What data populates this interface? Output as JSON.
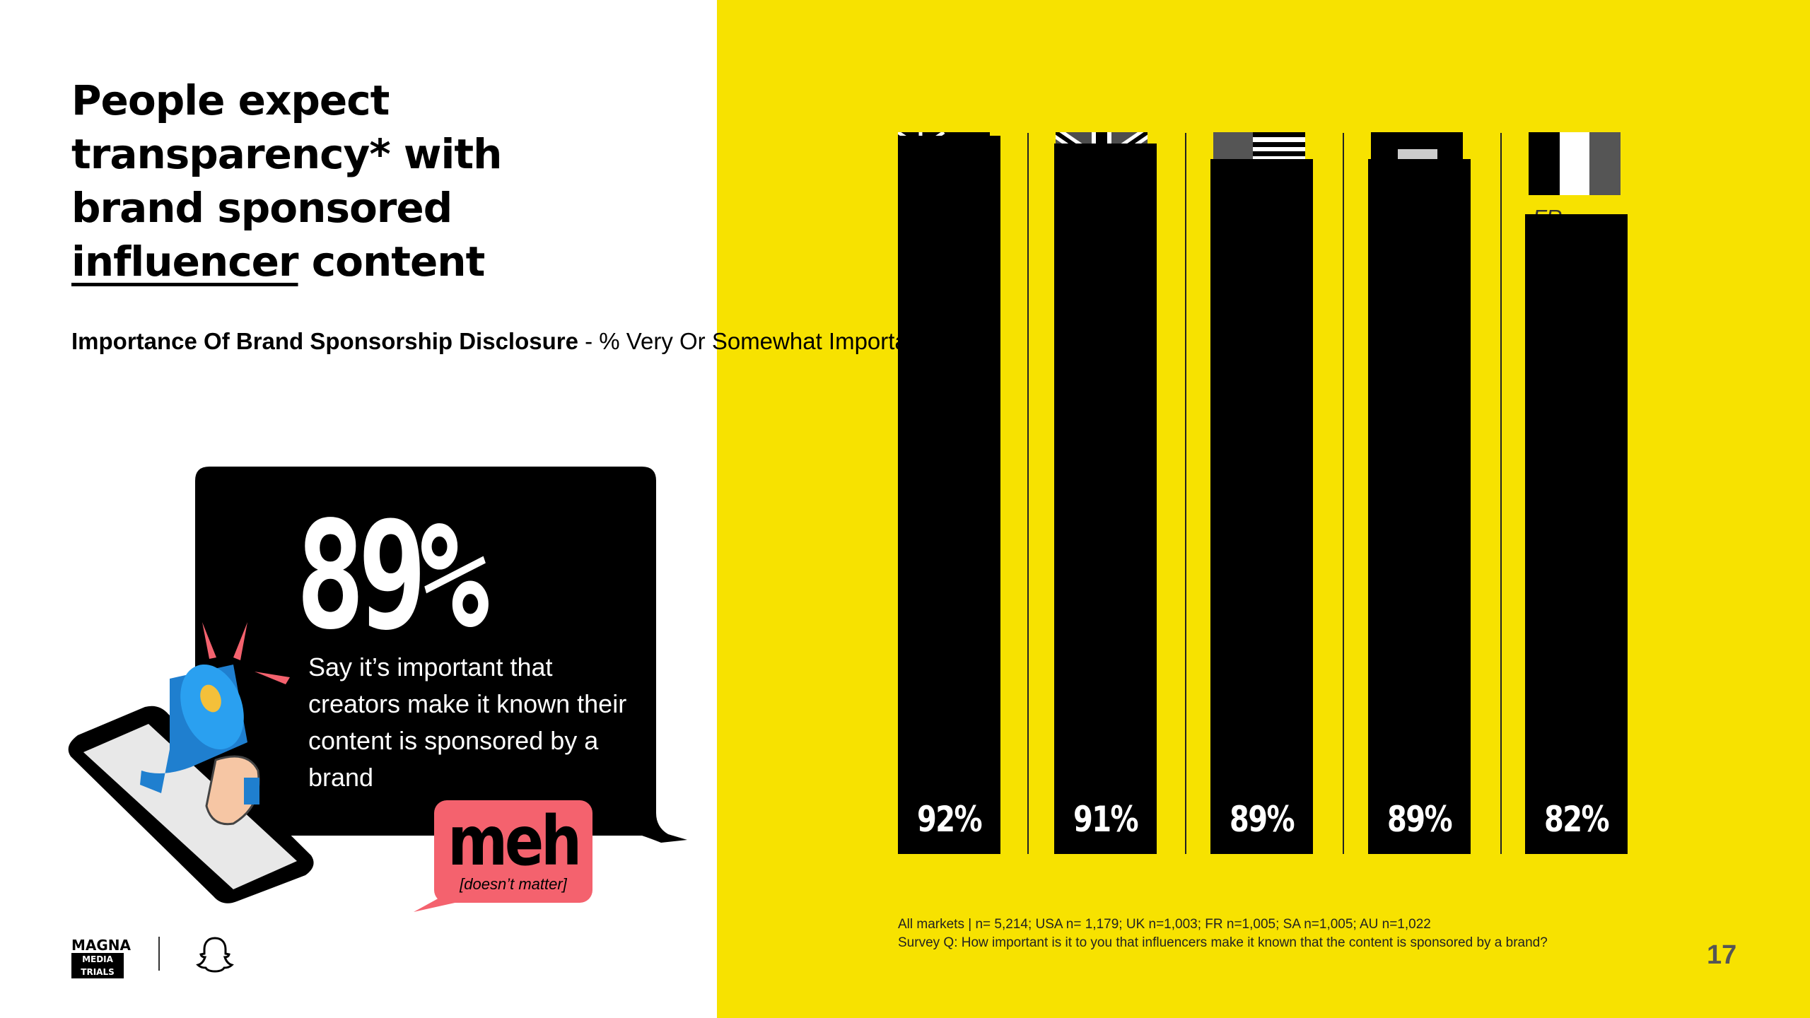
{
  "headline": {
    "line1": "People expect",
    "line2": "transparency* with",
    "line3": "brand sponsored",
    "underlined_word": "influencer",
    "line4_rest": " content"
  },
  "subtitle": {
    "bold": "Importance Of Brand Sponsorship Disclosure",
    "rest": " - % Very Or Somewhat Important"
  },
  "stat": {
    "value": "89%",
    "description": "Say it’s important that creators make it known their content is sponsored by a brand",
    "meh": "meh",
    "meh_note": "[doesn’t matter]"
  },
  "logos": {
    "magna_top": "MAGNA",
    "magna_bottom": "MEDIA TRIALS",
    "snapchat_icon": "ghost-icon"
  },
  "colors": {
    "panel": "#f7e200",
    "bar": "#000000",
    "accent": "#f4626e"
  },
  "chart_data": {
    "type": "bar",
    "title": "",
    "categories": [
      "AU",
      "UK",
      "US",
      "SA",
      "FR"
    ],
    "values": [
      92,
      91,
      89,
      89,
      82
    ],
    "value_labels": [
      "92%",
      "91%",
      "89%",
      "89%",
      "82%"
    ],
    "flag_icons": [
      "australia-flag-icon",
      "uk-flag-icon",
      "us-flag-icon",
      "saudi-arabia-flag-icon",
      "france-flag-icon"
    ],
    "ylim": [
      0,
      100
    ],
    "xlabel": "",
    "ylabel": "",
    "grid": false,
    "legend": "none"
  },
  "footnote": {
    "line1": "All markets | n= 5,214; USA n= 1,179; UK n=1,003; FR n=1,005; SA n=1,005; AU n=1,022",
    "line2": "Survey Q: How important is it to you that influencers make it known that the content is sponsored by a brand?"
  },
  "page_number": "17"
}
